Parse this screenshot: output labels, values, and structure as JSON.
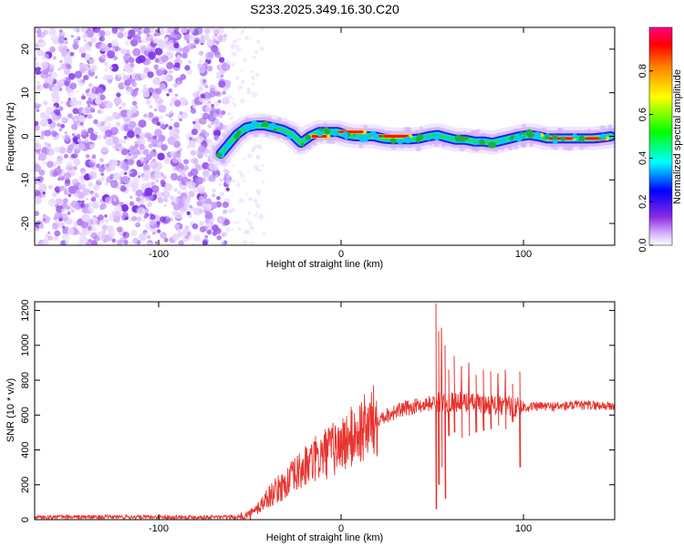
{
  "title": "S233.2025.349.16.30.C20",
  "chart_data": [
    {
      "type": "heatmap",
      "xlabel": "Height of straight line (km)",
      "ylabel": "Frequency (Hz)",
      "xlim": [
        -168,
        150
      ],
      "ylim": [
        -25,
        25
      ],
      "xticks": [
        -100,
        0,
        100
      ],
      "yticks": [
        -20,
        -10,
        0,
        10,
        20
      ],
      "noise_region_x": [
        -168,
        -62
      ],
      "ridge": {
        "x": [
          -66,
          -62,
          -57,
          -52,
          -47,
          -42,
          -37,
          -32,
          -27,
          -22,
          -17,
          -12,
          -7,
          -2,
          3,
          8,
          13,
          18,
          23,
          28,
          33,
          38,
          43,
          48,
          53,
          58,
          63,
          68,
          73,
          78,
          83,
          88,
          93,
          98,
          103,
          108,
          113,
          118,
          123,
          128,
          133,
          138,
          143,
          148
        ],
        "y": [
          -4,
          -2,
          0.5,
          2,
          2.5,
          2.5,
          2,
          1.5,
          0.5,
          -1.5,
          0,
          1,
          1,
          1,
          0.3,
          0,
          0,
          0,
          -0.5,
          -0.7,
          -0.7,
          -0.7,
          -0.5,
          0,
          0.3,
          -0.3,
          -0.8,
          -0.8,
          -1.2,
          -1.2,
          -1.5,
          -1,
          -0.5,
          0,
          0.3,
          0,
          -0.5,
          -0.5,
          -0.5,
          -0.5,
          -0.5,
          -0.5,
          -0.3,
          0
        ]
      },
      "colorbar": {
        "label": "Normalized spectral amplitude",
        "range": [
          0,
          1
        ],
        "ticks": [
          0.0,
          0.2,
          0.4,
          0.6,
          0.8
        ],
        "tick_labels": [
          "0.0",
          "0.2",
          "0.4",
          "0.6",
          "0.8"
        ]
      }
    },
    {
      "type": "line",
      "xlabel": "Height of straight line (km)",
      "ylabel": "SNR (10 * v/v)",
      "xlim": [
        -168,
        150
      ],
      "ylim": [
        0,
        1250
      ],
      "xticks": [
        -100,
        0,
        100
      ],
      "yticks": [
        0,
        200,
        400,
        600,
        800,
        1000,
        1200
      ],
      "color": "#e8332e",
      "series": [
        {
          "name": "SNR",
          "trend_x": [
            -168,
            -55,
            -48,
            -40,
            -30,
            -20,
            -10,
            0,
            10,
            20,
            30,
            40,
            50,
            60,
            70,
            80,
            90,
            100,
            110,
            120,
            130,
            140,
            150
          ],
          "trend_y": [
            15,
            15,
            40,
            130,
            210,
            300,
            370,
            430,
            500,
            580,
            620,
            650,
            670,
            680,
            670,
            660,
            650,
            645,
            650,
            650,
            655,
            655,
            650
          ],
          "spikes_x": [
            52,
            53.5,
            55,
            57,
            59,
            62,
            66,
            70,
            74,
            78,
            82,
            86,
            90,
            94,
            98
          ],
          "spikes_max": [
            1240,
            1080,
            1100,
            1000,
            860,
            940,
            880,
            900,
            830,
            860,
            850,
            840,
            860,
            780,
            850
          ],
          "spikes_min": [
            60,
            200,
            300,
            120,
            480,
            500,
            470,
            480,
            500,
            510,
            520,
            540,
            520,
            560,
            300
          ]
        }
      ]
    }
  ]
}
